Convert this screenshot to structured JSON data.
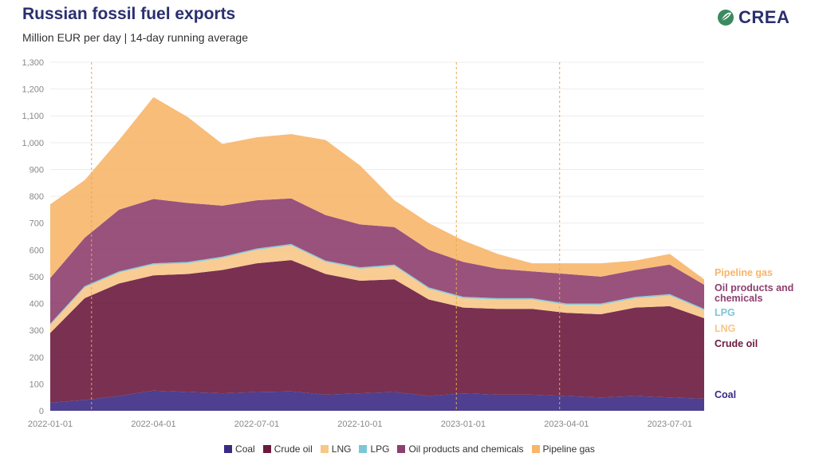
{
  "header": {
    "title": "Russian fossil fuel exports",
    "subtitle": "Million EUR per day | 14-day running average",
    "logo_text": "CREA"
  },
  "colors": {
    "Coal": "#3b2a84",
    "Crude oil": "#6b1a3e",
    "LNG": "#f7c787",
    "LPG": "#7cc6d6",
    "Oil products and chemicals": "#8e3f6e",
    "Pipeline gas": "#f7b66a"
  },
  "chart_data": {
    "type": "area",
    "stacked": true,
    "x": [
      "2022-01-01",
      "2022-02-01",
      "2022-03-01",
      "2022-04-01",
      "2022-05-01",
      "2022-06-01",
      "2022-07-01",
      "2022-08-01",
      "2022-09-01",
      "2022-10-01",
      "2022-11-01",
      "2022-12-01",
      "2023-01-01",
      "2023-02-01",
      "2023-03-01",
      "2023-04-01",
      "2023-05-01",
      "2023-06-01",
      "2023-07-01",
      "2023-08-01"
    ],
    "series": [
      {
        "name": "Coal",
        "values": [
          30,
          40,
          55,
          75,
          70,
          65,
          70,
          72,
          60,
          65,
          70,
          55,
          65,
          60,
          60,
          55,
          50,
          55,
          50,
          45
        ]
      },
      {
        "name": "Crude oil",
        "values": [
          260,
          380,
          420,
          430,
          440,
          460,
          480,
          490,
          450,
          420,
          420,
          360,
          320,
          320,
          320,
          310,
          310,
          330,
          340,
          300
        ]
      },
      {
        "name": "LNG",
        "values": [
          30,
          40,
          40,
          40,
          40,
          45,
          50,
          55,
          45,
          45,
          50,
          40,
          35,
          35,
          35,
          30,
          35,
          35,
          40,
          30
        ]
      },
      {
        "name": "LPG",
        "values": [
          5,
          5,
          5,
          5,
          5,
          5,
          5,
          5,
          5,
          5,
          5,
          5,
          5,
          5,
          5,
          5,
          5,
          5,
          5,
          5
        ]
      },
      {
        "name": "Oil products and chemicals",
        "values": [
          170,
          180,
          230,
          240,
          220,
          190,
          180,
          170,
          170,
          160,
          140,
          140,
          130,
          110,
          100,
          110,
          100,
          100,
          110,
          90
        ]
      },
      {
        "name": "Pipeline gas",
        "values": [
          275,
          215,
          260,
          380,
          320,
          230,
          235,
          240,
          280,
          220,
          100,
          100,
          80,
          55,
          30,
          40,
          50,
          35,
          40,
          20
        ]
      }
    ],
    "xlabel": "",
    "ylabel": "",
    "ylim": [
      0,
      1300
    ],
    "yticks": [
      "0",
      "100",
      "200",
      "300",
      "400",
      "500",
      "600",
      "700",
      "800",
      "900",
      "1,000",
      "1,100",
      "1,200",
      "1,300"
    ],
    "xtick_labels": [
      "2022-01-01",
      "2022-04-01",
      "2022-07-01",
      "2022-10-01",
      "2023-01-01",
      "2023-04-01",
      "2023-07-01"
    ],
    "xtick_positions": [
      0,
      3,
      6,
      9,
      12,
      15,
      18
    ],
    "grid": true,
    "legend": "bottom",
    "end_labels": [
      {
        "text": "Pipeline gas",
        "series": "Pipeline gas"
      },
      {
        "text": "Oil products and",
        "series": "Oil products and chemicals"
      },
      {
        "text": "chemicals",
        "series": "Oil products and chemicals"
      },
      {
        "text": "LPG",
        "series": "LPG"
      },
      {
        "text": "LNG",
        "series": "LNG"
      },
      {
        "text": "Crude oil",
        "series": "Crude oil"
      },
      {
        "text": "Coal",
        "series": "Coal"
      }
    ],
    "vlines_x": [
      1.2,
      11.8,
      14.8
    ]
  }
}
